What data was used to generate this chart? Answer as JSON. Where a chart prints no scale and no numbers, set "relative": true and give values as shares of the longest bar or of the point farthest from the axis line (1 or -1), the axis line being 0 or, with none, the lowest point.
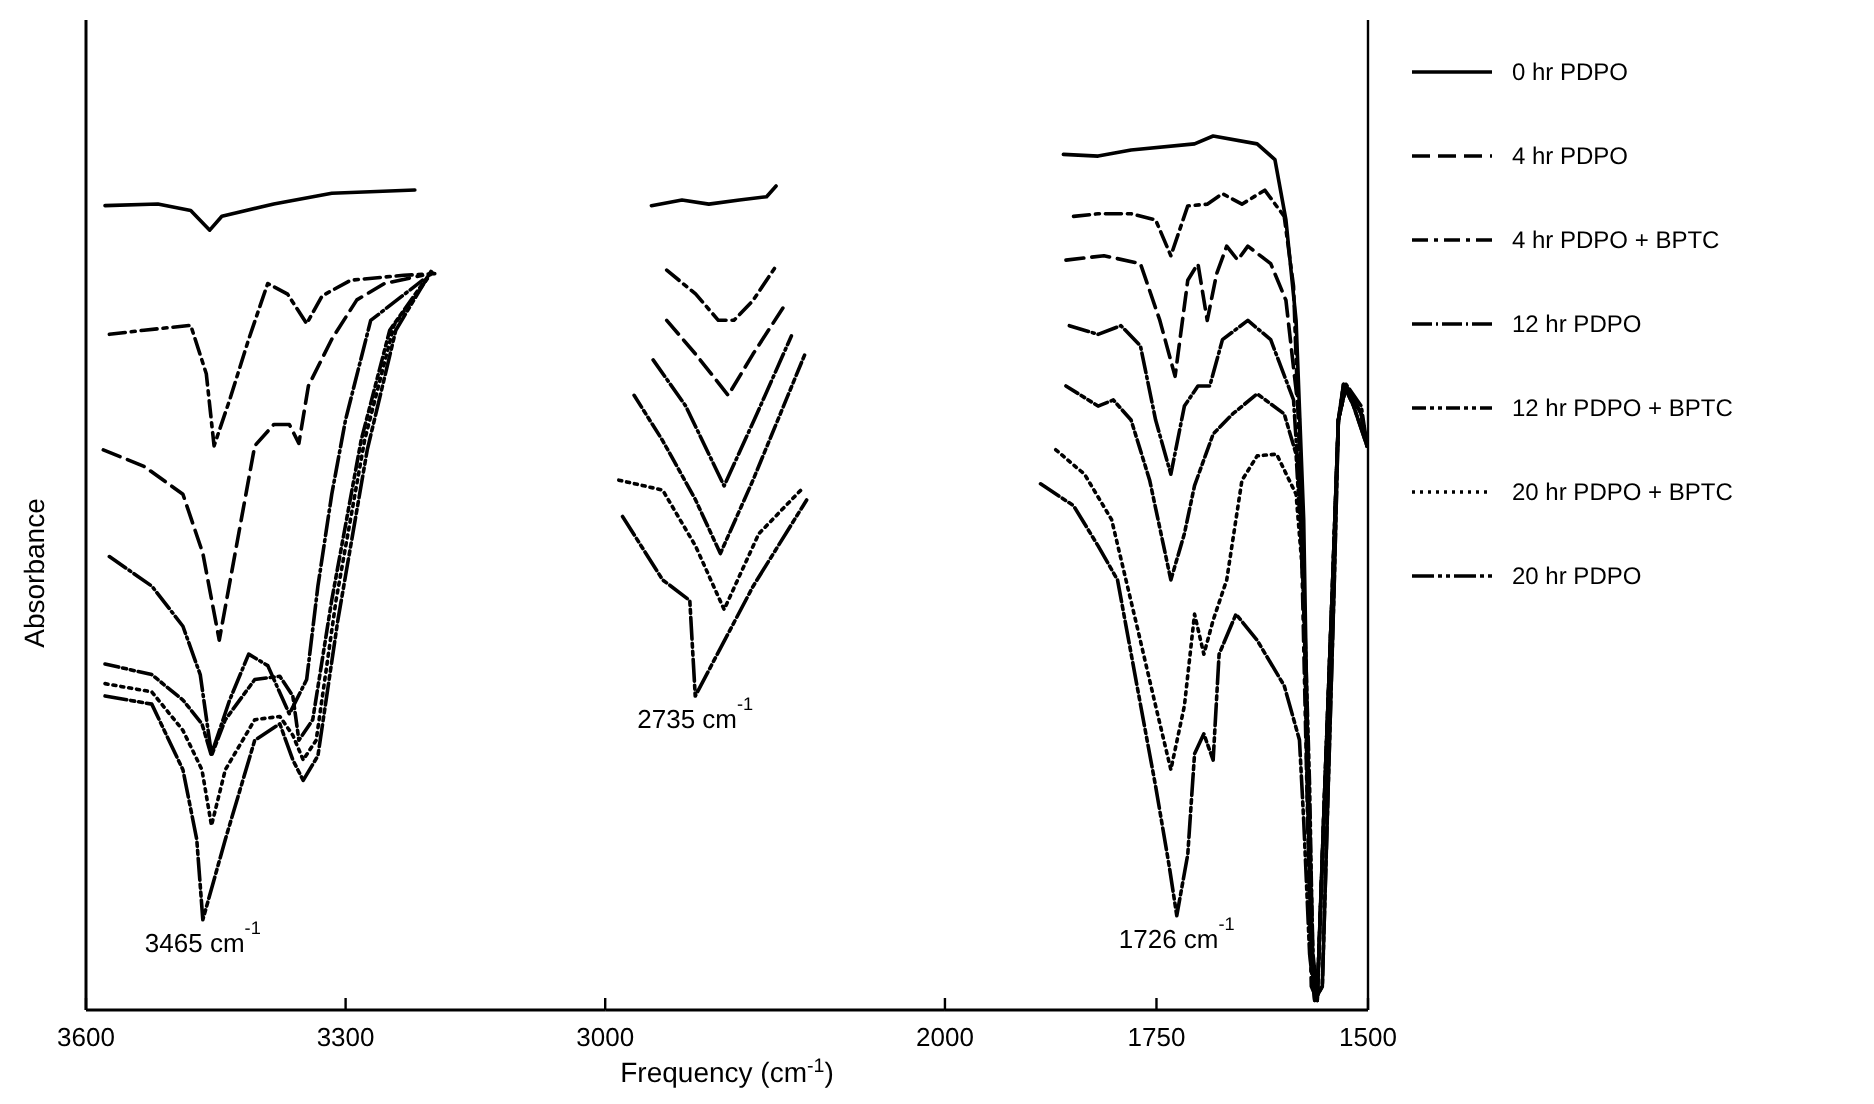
{
  "chart_data": [
    {
      "type": "line",
      "relative": true,
      "ylabel": "Absorbance",
      "xlim": [
        3600,
        3000
      ],
      "xticks": [
        3600,
        3300
      ],
      "marker": "none",
      "annotations": [
        {
          "text": "3465 cm$^{-1}$",
          "x": 3465,
          "y": 0.11
        }
      ],
      "series": [
        {
          "color": "#000000",
          "line_style": "solid",
          "x": [
            3578,
            3517,
            3479,
            3457,
            3443,
            3383,
            3316,
            3220
          ],
          "values": [
            0.981,
            0.983,
            0.975,
            0.951,
            0.968,
            0.983,
            0.996,
            1.0
          ]
        },
        {
          "color": "#000000",
          "line_style": "dashed",
          "x": [
            3580,
            3533,
            3488,
            3465,
            3446,
            3432,
            3405,
            3383,
            3365,
            3354,
            3343,
            3316,
            3287,
            3255,
            3211
          ],
          "values": [
            0.683,
            0.663,
            0.629,
            0.557,
            0.451,
            0.532,
            0.688,
            0.714,
            0.714,
            0.691,
            0.761,
            0.818,
            0.866,
            0.886,
            0.896
          ]
        },
        {
          "color": "#000000",
          "line_style": "dashdot",
          "x": [
            3573,
            3533,
            3479,
            3461,
            3452,
            3434,
            3412,
            3390,
            3367,
            3345,
            3327,
            3294,
            3233,
            3197
          ],
          "values": [
            0.824,
            0.829,
            0.835,
            0.776,
            0.688,
            0.744,
            0.818,
            0.886,
            0.873,
            0.837,
            0.871,
            0.89,
            0.896,
            0.898
          ]
        },
        {
          "color": "#000000",
          "line_style": "dashbar",
          "x": [
            3573,
            3524,
            3488,
            3468,
            3455,
            3434,
            3412,
            3390,
            3365,
            3345,
            3332,
            3316,
            3300,
            3271,
            3211
          ],
          "values": [
            0.553,
            0.517,
            0.468,
            0.409,
            0.312,
            0.378,
            0.434,
            0.42,
            0.361,
            0.403,
            0.517,
            0.629,
            0.72,
            0.841,
            0.89
          ]
        },
        {
          "color": "#000000",
          "line_style": "dashdotdot",
          "x": [
            3578,
            3524,
            3488,
            3466,
            3455,
            3439,
            3405,
            3376,
            3361,
            3354,
            3338,
            3316,
            3282,
            3249,
            3204
          ],
          "values": [
            0.422,
            0.409,
            0.378,
            0.349,
            0.31,
            0.354,
            0.403,
            0.407,
            0.383,
            0.329,
            0.354,
            0.5,
            0.695,
            0.829,
            0.896
          ]
        },
        {
          "color": "#000000",
          "line_style": "dotted",
          "x": [
            3578,
            3524,
            3488,
            3466,
            3455,
            3439,
            3405,
            3376,
            3361,
            3349,
            3334,
            3311,
            3278,
            3244,
            3200
          ],
          "values": [
            0.398,
            0.388,
            0.341,
            0.293,
            0.225,
            0.293,
            0.354,
            0.358,
            0.335,
            0.305,
            0.329,
            0.5,
            0.695,
            0.835,
            0.9
          ]
        },
        {
          "color": "#000000",
          "line_style": "longdashdotdot",
          "x": [
            3578,
            3524,
            3488,
            3472,
            3465,
            3439,
            3405,
            3376,
            3361,
            3349,
            3332,
            3309,
            3275,
            3242,
            3200
          ],
          "values": [
            0.383,
            0.373,
            0.293,
            0.208,
            0.11,
            0.208,
            0.329,
            0.349,
            0.305,
            0.28,
            0.31,
            0.475,
            0.683,
            0.829,
            0.903
          ]
        }
      ]
    },
    {
      "type": "line",
      "relative": true,
      "xlabel": "Frequency (cm$^{-1}$)",
      "xlim": [
        3000,
        2000
      ],
      "xticks": [
        3000,
        2000
      ],
      "marker": "none",
      "annotations": [
        {
          "text": "2735 cm$^{-1}$",
          "x": 2735,
          "y": 0.381
        }
      ],
      "series": [
        {
          "color": "#000000",
          "line_style": "solid",
          "x": [
            2864,
            2774,
            2695,
            2605,
            2525,
            2497
          ],
          "values": [
            0.976,
            0.983,
            0.978,
            0.983,
            0.987,
            1.0
          ]
        },
        {
          "color": "#000000",
          "line_style": "dashed",
          "x": [
            2819,
            2734,
            2638,
            2565,
            2469
          ],
          "values": [
            0.837,
            0.796,
            0.746,
            0.796,
            0.857
          ]
        },
        {
          "color": "#000000",
          "line_style": "dashdot",
          "x": [
            2819,
            2734,
            2667,
            2621,
            2565,
            2492
          ],
          "values": [
            0.898,
            0.869,
            0.837,
            0.837,
            0.861,
            0.906
          ]
        },
        {
          "color": "#000000",
          "line_style": "dashbar",
          "x": [
            2859,
            2763,
            2650,
            2554,
            2452
          ],
          "values": [
            0.789,
            0.733,
            0.636,
            0.723,
            0.818
          ]
        },
        {
          "color": "#000000",
          "line_style": "dashdotdot",
          "x": [
            2915,
            2831,
            2734,
            2661,
            2565,
            2412
          ],
          "values": [
            0.746,
            0.691,
            0.619,
            0.554,
            0.643,
            0.796
          ]
        },
        {
          "color": "#000000",
          "line_style": "dotted",
          "x": [
            2960,
            2831,
            2734,
            2650,
            2548,
            2424
          ],
          "values": [
            0.643,
            0.631,
            0.563,
            0.486,
            0.578,
            0.631
          ]
        },
        {
          "color": "#000000",
          "line_style": "longdashdotdot",
          "x": [
            2949,
            2831,
            2751,
            2735,
            2565,
            2407
          ],
          "values": [
            0.599,
            0.522,
            0.497,
            0.381,
            0.514,
            0.619
          ]
        }
      ]
    },
    {
      "type": "line",
      "relative": true,
      "xlim": [
        2000,
        1500
      ],
      "xticks": [
        1750,
        1500
      ],
      "legend": "right",
      "marker": "none",
      "annotations": [
        {
          "text": "1726 cm$^{-1}$",
          "x": 1726,
          "y": 0.108
        }
      ],
      "series": [
        {
          "name": "0 hr PDPO",
          "color": "#000000",
          "line_style": "solid",
          "x": [
            1860,
            1819,
            1780,
            1705,
            1683,
            1631,
            1610,
            1597,
            1585,
            1576,
            1572,
            1567,
            1563,
            1554,
            1547,
            1540,
            1535,
            1529,
            1517,
            1501
          ],
          "values": [
            0.979,
            0.977,
            0.984,
            0.991,
            1.0,
            0.991,
            0.973,
            0.904,
            0.789,
            0.561,
            0.332,
            0.064,
            0.011,
            0.027,
            0.256,
            0.485,
            0.675,
            0.716,
            0.691,
            0.645
          ]
        },
        {
          "name": "4 hr PDPO",
          "color": "#000000",
          "line_style": "dashed",
          "x": [
            1857,
            1812,
            1769,
            1746,
            1728,
            1713,
            1701,
            1690,
            1679,
            1667,
            1654,
            1642,
            1615,
            1597,
            1581,
            1574,
            1567,
            1560,
            1551,
            1542,
            1535,
            1526,
            1508,
            1501
          ],
          "values": [
            0.858,
            0.863,
            0.854,
            0.789,
            0.725,
            0.835,
            0.854,
            0.789,
            0.842,
            0.874,
            0.858,
            0.874,
            0.854,
            0.812,
            0.675,
            0.407,
            0.064,
            0.011,
            0.256,
            0.485,
            0.675,
            0.714,
            0.682,
            0.645
          ]
        },
        {
          "name": "4 hr PDPO + BPTC",
          "color": "#000000",
          "line_style": "dashdot",
          "x": [
            1848,
            1819,
            1780,
            1751,
            1733,
            1713,
            1690,
            1672,
            1649,
            1622,
            1599,
            1588,
            1581,
            1574,
            1567,
            1560,
            1551,
            1542,
            1535,
            1526,
            1508,
            1501
          ],
          "values": [
            0.908,
            0.911,
            0.911,
            0.904,
            0.863,
            0.92,
            0.922,
            0.934,
            0.922,
            0.938,
            0.908,
            0.828,
            0.636,
            0.332,
            0.027,
            0.011,
            0.256,
            0.485,
            0.675,
            0.714,
            0.682,
            0.645
          ]
        },
        {
          "name": "12 hr PDPO",
          "color": "#000000",
          "line_style": "dashbar",
          "x": [
            1853,
            1819,
            1792,
            1769,
            1751,
            1733,
            1717,
            1701,
            1687,
            1672,
            1642,
            1615,
            1588,
            1579,
            1572,
            1565,
            1560,
            1551,
            1542,
            1535,
            1526,
            1508,
            1501
          ],
          "values": [
            0.783,
            0.773,
            0.783,
            0.76,
            0.675,
            0.613,
            0.691,
            0.714,
            0.714,
            0.767,
            0.789,
            0.767,
            0.698,
            0.561,
            0.332,
            0.064,
            0.016,
            0.256,
            0.485,
            0.675,
            0.716,
            0.691,
            0.645
          ]
        },
        {
          "name": "12 hr PDPO + BPTC",
          "color": "#000000",
          "line_style": "dashdotdot",
          "x": [
            1857,
            1819,
            1801,
            1780,
            1758,
            1733,
            1717,
            1705,
            1683,
            1660,
            1631,
            1599,
            1585,
            1576,
            1569,
            1565,
            1560,
            1551,
            1542,
            1535,
            1526,
            1508,
            1501
          ],
          "values": [
            0.714,
            0.691,
            0.698,
            0.675,
            0.606,
            0.492,
            0.545,
            0.6,
            0.659,
            0.682,
            0.705,
            0.682,
            0.636,
            0.485,
            0.256,
            0.041,
            0.011,
            0.256,
            0.485,
            0.675,
            0.714,
            0.682,
            0.645
          ]
        },
        {
          "name": "20 hr PDPO + BPTC",
          "color": "#000000",
          "line_style": "dotted",
          "x": [
            1869,
            1835,
            1803,
            1773,
            1751,
            1733,
            1717,
            1705,
            1694,
            1683,
            1667,
            1649,
            1631,
            1608,
            1585,
            1576,
            1572,
            1565,
            1560,
            1551,
            1542,
            1535,
            1526,
            1508,
            1501
          ],
          "values": [
            0.641,
            0.613,
            0.561,
            0.439,
            0.348,
            0.275,
            0.348,
            0.453,
            0.407,
            0.446,
            0.492,
            0.606,
            0.634,
            0.636,
            0.59,
            0.485,
            0.256,
            0.027,
            0.011,
            0.256,
            0.485,
            0.675,
            0.714,
            0.682,
            0.645
          ]
        },
        {
          "name": "20 hr PDPO",
          "color": "#000000",
          "line_style": "longdashdotdot",
          "x": [
            1887,
            1848,
            1819,
            1796,
            1773,
            1751,
            1735,
            1726,
            1713,
            1705,
            1694,
            1683,
            1676,
            1656,
            1631,
            1599,
            1581,
            1576,
            1569,
            1563,
            1554,
            1547,
            1540,
            1535,
            1529,
            1517,
            1501
          ],
          "values": [
            0.602,
            0.577,
            0.531,
            0.492,
            0.371,
            0.256,
            0.165,
            0.108,
            0.178,
            0.293,
            0.316,
            0.286,
            0.407,
            0.453,
            0.423,
            0.371,
            0.309,
            0.217,
            0.064,
            0.011,
            0.027,
            0.256,
            0.485,
            0.675,
            0.716,
            0.691,
            0.645
          ]
        }
      ]
    }
  ]
}
